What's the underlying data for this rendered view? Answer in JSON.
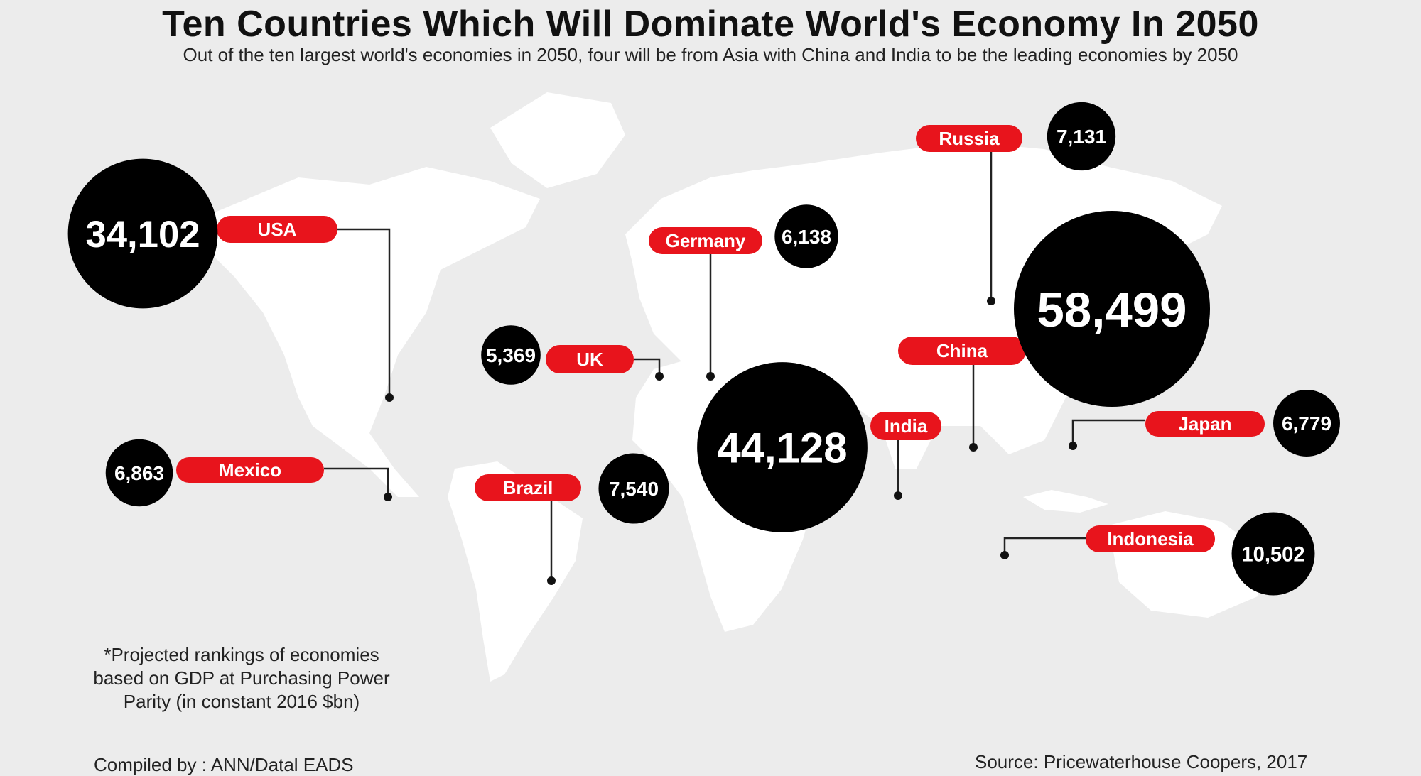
{
  "title": "Ten Countries Which Will Dominate World's Economy In 2050",
  "subtitle": "Out of the ten largest world's economies in 2050, four will be from Asia with China and India to be the leading economies by 2050",
  "footnote": "*Projected rankings of economies based on GDP at Purchasing Power Parity (in constant 2016 $bn)",
  "compiled_by": "Compiled by : ANN/Datal EADS",
  "source": "Source:  Pricewaterhouse Coopers, 2017",
  "colors": {
    "background": "#ececec",
    "map": "#ffffff",
    "bubble": "#000000",
    "label": "#e8141c"
  },
  "chart_data": {
    "type": "bubble-map",
    "title": "Ten Countries Which Will Dominate World's Economy In 2050",
    "unit": "$bn (PPP, constant 2016)",
    "categories": [
      "China",
      "India",
      "USA",
      "Indonesia",
      "Brazil",
      "Russia",
      "Mexico",
      "Japan",
      "Germany",
      "UK"
    ],
    "values": [
      58499,
      44128,
      34102,
      10502,
      7540,
      7131,
      6863,
      6779,
      6138,
      5369
    ],
    "value_labels": [
      "58,499",
      "44,128",
      "34,102",
      "10,502",
      "7,540",
      "7,131",
      "6,863",
      "6,779",
      "6,138",
      "5,369"
    ]
  }
}
